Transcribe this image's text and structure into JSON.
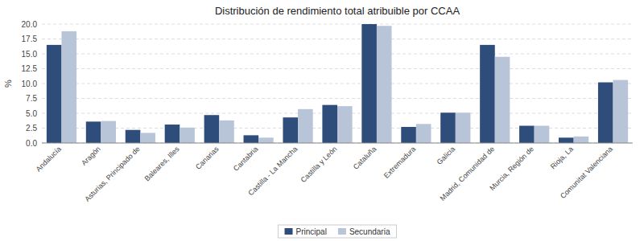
{
  "chart_data": {
    "type": "bar",
    "title": "Distribución de rendimiento total atribuible por CCAA",
    "categories": [
      "Andalucía",
      "Aragón",
      "Asturias, Principado de",
      "Baleares, Illes",
      "Canarias",
      "Cantabria",
      "Castilla - La Mancha",
      "Castilla y León",
      "Cataluña",
      "Extremadura",
      "Galicia",
      "Madrid, Comunidad de",
      "Murcia, Región de",
      "Rioja, La",
      "Comunitat Valenciana"
    ],
    "series": [
      {
        "name": "Principal",
        "color": "#2E4D7B",
        "values": [
          16.5,
          3.6,
          2.2,
          3.1,
          4.7,
          1.3,
          4.3,
          6.4,
          20.0,
          2.7,
          5.1,
          16.5,
          2.9,
          0.9,
          10.2
        ]
      },
      {
        "name": "Secundaria",
        "color": "#B8C4D8",
        "values": [
          18.8,
          3.7,
          1.7,
          2.6,
          3.8,
          0.9,
          5.7,
          6.2,
          19.7,
          3.2,
          5.1,
          14.5,
          2.9,
          1.1,
          10.6
        ]
      }
    ],
    "ylabel": "%",
    "ylim": [
      0,
      20.0
    ],
    "yticks": [
      {
        "value": 0,
        "label": "0.0"
      },
      2.5,
      {
        "value": 5,
        "label": "5.0"
      },
      7.5,
      {
        "value": 10,
        "label": "10.0"
      },
      12.5,
      {
        "value": 15,
        "label": "15.0"
      },
      17.5,
      {
        "value": 20,
        "label": "20.0"
      }
    ],
    "grid": true,
    "legend": "bottom"
  }
}
